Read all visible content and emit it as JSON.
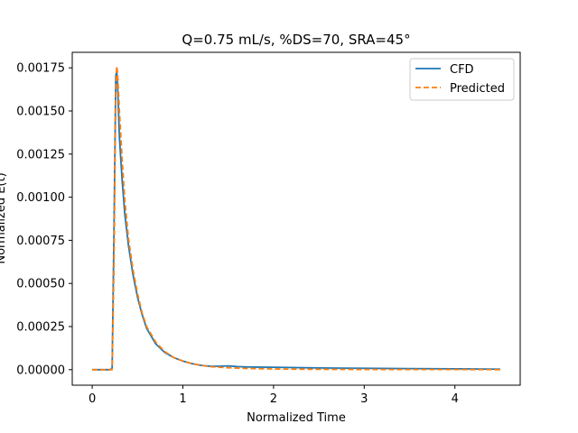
{
  "chart_data": {
    "type": "line",
    "title": "Q=0.75 mL/s, %DS=70, SRA=45°",
    "xlabel": "Normalized Time",
    "ylabel": "Normalized E(t)",
    "xlim": [
      -0.22,
      4.72
    ],
    "ylim": [
      -9e-05,
      0.00184
    ],
    "xticks": [
      0,
      1,
      2,
      3,
      4
    ],
    "xtick_labels": [
      "0",
      "1",
      "2",
      "3",
      "4"
    ],
    "yticks": [
      0,
      0.00025,
      0.0005,
      0.00075,
      0.001,
      0.00125,
      0.0015,
      0.00175
    ],
    "ytick_labels": [
      "0.00000",
      "0.00025",
      "0.00050",
      "0.00075",
      "0.00100",
      "0.00125",
      "0.00150",
      "0.00175"
    ],
    "grid": false,
    "legend": "top-right",
    "series": [
      {
        "name": "CFD",
        "color": "#1f77b4",
        "dash": "solid",
        "x": [
          0,
          0.2,
          0.22,
          0.24,
          0.26,
          0.27,
          0.28,
          0.3,
          0.33,
          0.36,
          0.4,
          0.45,
          0.5,
          0.55,
          0.6,
          0.7,
          0.8,
          0.9,
          1.0,
          1.1,
          1.2,
          1.3,
          1.4,
          1.5,
          1.6,
          1.7,
          1.8,
          2.0,
          2.5,
          3.0,
          3.5,
          4.0,
          4.5
        ],
        "y": [
          0,
          0,
          1e-05,
          0.0008,
          0.0017,
          0.00173,
          0.00165,
          0.00135,
          0.0011,
          0.0009,
          0.00072,
          0.00055,
          0.00042,
          0.00032,
          0.00024,
          0.00015,
          0.0001,
          7e-05,
          5e-05,
          3.5e-05,
          2.5e-05,
          2e-05,
          2e-05,
          2.2e-05,
          1.8e-05,
          1.6e-05,
          1.5e-05,
          1.4e-05,
          1e-05,
          8e-06,
          6e-06,
          5e-06,
          3e-06
        ]
      },
      {
        "name": "Predicted",
        "color": "#ff7f0e",
        "dash": "dashed",
        "x": [
          0,
          0.22,
          0.24,
          0.26,
          0.27,
          0.28,
          0.3,
          0.33,
          0.36,
          0.4,
          0.45,
          0.5,
          0.55,
          0.6,
          0.7,
          0.8,
          0.9,
          1.0,
          1.1,
          1.2,
          1.3,
          1.4,
          1.5,
          1.6,
          1.7,
          1.8,
          2.0,
          2.5,
          3.0,
          3.5,
          4.0,
          4.5
        ],
        "y": [
          0,
          0,
          0.0006,
          0.0016,
          0.00176,
          0.00172,
          0.0015,
          0.00122,
          0.00098,
          0.00076,
          0.00058,
          0.00044,
          0.00033,
          0.00025,
          0.00016,
          0.000105,
          7e-05,
          5e-05,
          3.5e-05,
          2.5e-05,
          1.8e-05,
          1.4e-05,
          1.1e-05,
          9e-06,
          7e-06,
          6e-06,
          4e-06,
          2e-06,
          1e-06,
          1e-06,
          1e-06,
          0
        ]
      }
    ]
  }
}
